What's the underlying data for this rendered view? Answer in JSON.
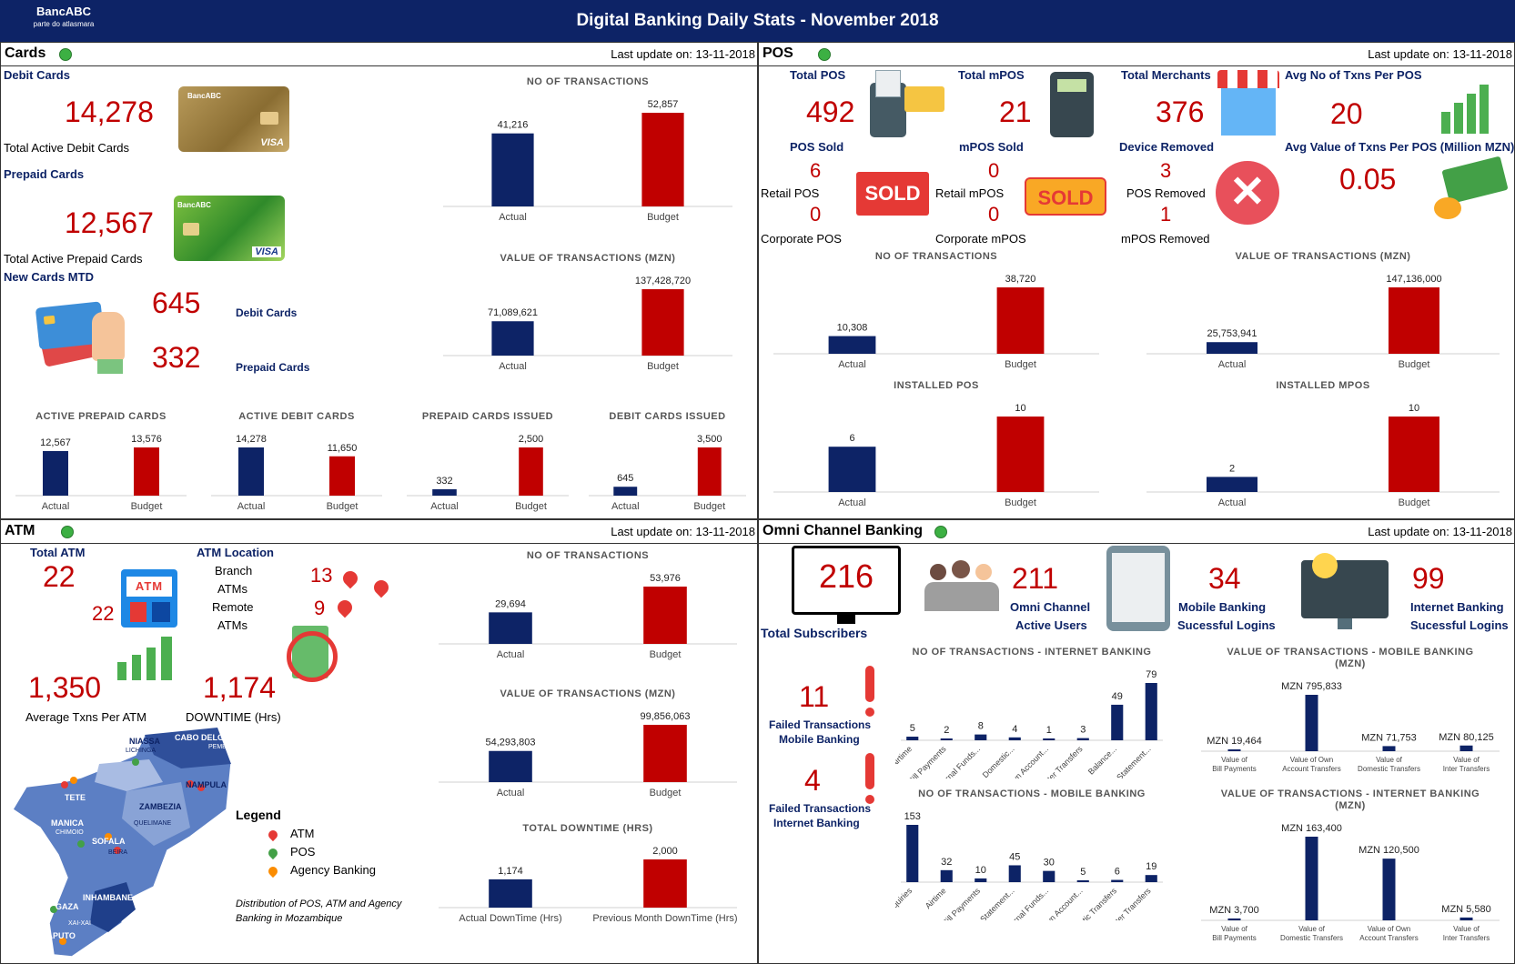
{
  "header": {
    "brand": "BancABC",
    "brand_sub": "parte do atlasmara",
    "title": "Digital Banking Daily Stats - November 2018"
  },
  "colors": {
    "navy": "#0d2366",
    "red": "#c00000",
    "status_green": "#3cb043"
  },
  "cards": {
    "title": "Cards",
    "updated": "Last update on: 13-11-2018",
    "debit_label": "Debit Cards",
    "debit_total": "14,278",
    "debit_caption": "Total Active Debit Cards",
    "prepaid_label": "Prepaid Cards",
    "prepaid_total": "12,567",
    "prepaid_caption": "Total Active Prepaid Cards",
    "new_label": "New Cards MTD",
    "new_debit": "645",
    "new_debit_label": "Debit Cards",
    "new_prepaid": "332",
    "new_prepaid_label": "Prepaid Cards",
    "card_icon_brand": "BancABC",
    "card_icon_visa": "VISA"
  },
  "pos": {
    "title": "POS",
    "updated": "Last update on: 13-11-2018",
    "total_pos_label": "Total POS",
    "total_pos": "492",
    "total_mpos_label": "Total mPOS",
    "total_mpos": "21",
    "total_merchants_label": "Total Merchants",
    "total_merchants": "376",
    "avg_txns_label": "Avg No of Txns Per POS",
    "avg_txns": "20",
    "pos_sold_label": "POS Sold",
    "pos_sold": "6",
    "mpos_sold_label": "mPOS Sold",
    "mpos_sold": "0",
    "device_removed_label": "Device Removed",
    "avg_value_label": "Avg Value of Txns Per POS (Million MZN)",
    "avg_value": "0.05",
    "retail_pos_label": "Retail POS",
    "corporate_pos": "0",
    "corporate_pos_label": "Corporate POS",
    "retail_mpos_label": "Retail mPOS",
    "corporate_mpos": "0",
    "corporate_mpos_label": "Corporate mPOS",
    "pos_removed": "3",
    "pos_removed_label": "POS Removed",
    "mpos_removed": "1",
    "mpos_removed_label": "mPOS Removed",
    "sold_text": "SOLD"
  },
  "atm": {
    "title": "ATM",
    "updated": "Last update on: 13-11-2018",
    "total_label": "Total ATM",
    "total": "22",
    "total_small": "22",
    "icon_text": "ATM",
    "location_label": "ATM Location",
    "branch_label": "Branch",
    "branch_label2": "ATMs",
    "branch": "13",
    "remote_label": "Remote",
    "remote_label2": "ATMs",
    "remote": "9",
    "avg_txns": "1,350",
    "avg_txns_label": "Average Txns Per ATM",
    "downtime": "1,174",
    "downtime_label": "DOWNTIME (Hrs)",
    "legend_title": "Legend",
    "legend": [
      "ATM",
      "POS",
      "Agency Banking"
    ],
    "legend_colors": [
      "#e53935",
      "#43a047",
      "#fb8c00"
    ],
    "map_caption": "Distribution of POS, ATM and Agency Banking in Mozambique",
    "map_labels": [
      "NIASSA",
      "CABO DELGADO",
      "PEMBA",
      "LICHINGA",
      "TETE",
      "NAMPULA",
      "ZAMBEZIA",
      "QUELIMANE",
      "MANICA",
      "CHIMOIO",
      "SOFALA",
      "BEIRA",
      "INHAMBANE",
      "GAZA",
      "MAPUTO",
      "XAI-XAI"
    ]
  },
  "omni": {
    "title": "Omni Channel Banking",
    "updated": "Last update on: 13-11-2018",
    "subscribers": "216",
    "subscribers_label": "Total Subscribers",
    "active_users": "211",
    "active_users_label1": "Omni Channel",
    "active_users_label2": "Active Users",
    "mobile_logins": "34",
    "mobile_logins_label1": "Mobile Banking",
    "mobile_logins_label2": "Sucessful Logins",
    "internet_logins": "99",
    "internet_logins_label1": "Internet Banking",
    "internet_logins_label2": "Sucessful Logins",
    "failed_mobile": "11",
    "failed_mobile_label1": "Failed Transactions",
    "failed_mobile_label2": "Mobile Banking",
    "failed_internet": "4",
    "failed_internet_label1": "Failed Transactions",
    "failed_internet_label2": "Internet Banking"
  },
  "chart_data": [
    {
      "id": "cards_txns",
      "type": "bar",
      "title": "NO OF TRANSACTIONS",
      "categories": [
        "Actual",
        "Budget"
      ],
      "values": [
        41216,
        52857
      ],
      "labels": [
        "41,216",
        "52,857"
      ]
    },
    {
      "id": "cards_value",
      "type": "bar",
      "title": "VALUE OF TRANSACTIONS (MZN)",
      "categories": [
        "Actual",
        "Budget"
      ],
      "values": [
        71089621,
        137428720
      ],
      "labels": [
        "71,089,621",
        "137,428,720"
      ]
    },
    {
      "id": "active_prepaid",
      "type": "bar",
      "title": "ACTIVE PREPAID CARDS",
      "categories": [
        "Actual",
        "Budget"
      ],
      "values": [
        12567,
        13576
      ],
      "labels": [
        "12,567",
        "13,576"
      ]
    },
    {
      "id": "active_debit",
      "type": "bar",
      "title": "ACTIVE DEBIT CARDS",
      "categories": [
        "Actual",
        "Budget"
      ],
      "values": [
        14278,
        11650
      ],
      "labels": [
        "14,278",
        "11,650"
      ]
    },
    {
      "id": "prepaid_issued",
      "type": "bar",
      "title": "PREPAID CARDS ISSUED",
      "categories": [
        "Actual",
        "Budget"
      ],
      "values": [
        332,
        2500
      ],
      "labels": [
        "332",
        "2,500"
      ]
    },
    {
      "id": "debit_issued",
      "type": "bar",
      "title": "DEBIT CARDS ISSUED",
      "categories": [
        "Actual",
        "Budget"
      ],
      "values": [
        645,
        3500
      ],
      "labels": [
        "645",
        "3,500"
      ]
    },
    {
      "id": "pos_txns",
      "type": "bar",
      "title": "NO OF TRANSACTIONS",
      "categories": [
        "Actual",
        "Budget"
      ],
      "values": [
        10308,
        38720
      ],
      "labels": [
        "10,308",
        "38,720"
      ]
    },
    {
      "id": "pos_value",
      "type": "bar",
      "title": "VALUE OF TRANSACTIONS (MZN)",
      "categories": [
        "Actual",
        "Budget"
      ],
      "values": [
        25753941,
        147136000
      ],
      "labels": [
        "25,753,941",
        "147,136,000"
      ]
    },
    {
      "id": "installed_pos",
      "type": "bar",
      "title": "INSTALLED POS",
      "categories": [
        "Actual",
        "Budget"
      ],
      "values": [
        6,
        10
      ],
      "labels": [
        "6",
        "10"
      ]
    },
    {
      "id": "installed_mpos",
      "type": "bar",
      "title": "INSTALLED MPOS",
      "categories": [
        "Actual",
        "Budget"
      ],
      "values": [
        2,
        10
      ],
      "labels": [
        "2",
        "10"
      ]
    },
    {
      "id": "atm_txns",
      "type": "bar",
      "title": "NO OF TRANSACTIONS",
      "categories": [
        "Actual",
        "Budget"
      ],
      "values": [
        29694,
        53976
      ],
      "labels": [
        "29,694",
        "53,976"
      ]
    },
    {
      "id": "atm_value",
      "type": "bar",
      "title": "VALUE OF TRANSACTIONS (MZN)",
      "categories": [
        "Actual",
        "Budget"
      ],
      "values": [
        54293803,
        99856063
      ],
      "labels": [
        "54,293,803",
        "99,856,063"
      ]
    },
    {
      "id": "atm_downtime",
      "type": "bar",
      "title": "TOTAL DOWNTIME (HRS)",
      "categories": [
        "Actual DownTime (Hrs)",
        "Previous Month DownTime (Hrs)"
      ],
      "values": [
        1174,
        2000
      ],
      "labels": [
        "1,174",
        "2,000"
      ]
    },
    {
      "id": "ib_txns",
      "type": "bar",
      "title": "NO OF TRANSACTIONS - INTERNET BANKING",
      "categories": [
        "Airtime",
        "Bill Payments",
        "Internal Funds...",
        "Domestic...",
        "Own Account...",
        "Inter Transfers",
        "Balance...",
        "Statement..."
      ],
      "values": [
        5,
        2,
        8,
        4,
        1,
        3,
        49,
        79
      ],
      "labels": [
        "5",
        "2",
        "8",
        "4",
        "1",
        "3",
        "49",
        "79"
      ]
    },
    {
      "id": "mb_value",
      "type": "bar",
      "title": "VALUE OF TRANSACTIONS - MOBILE BANKING (MZN)",
      "categories": [
        "Value of Bill Payments",
        "Value of Own Account Transfers",
        "Value of Domestic Transfers",
        "Value of Inter Transfers"
      ],
      "values": [
        19464,
        795833,
        71753,
        80125
      ],
      "labels": [
        "MZN 19,464",
        "MZN 795,833",
        "MZN 71,753",
        "MZN 80,125"
      ]
    },
    {
      "id": "mb_txns",
      "type": "bar",
      "title": "NO OF TRANSACTIONS - MOBILE BANKING",
      "categories": [
        "Balance Enquiries",
        "Airtime",
        "Bill Payments",
        "Statement...",
        "Internal Funds...",
        "Own Account...",
        "Domestic Transfers",
        "Inter Transfers"
      ],
      "values": [
        153,
        32,
        10,
        45,
        30,
        5,
        6,
        19
      ],
      "labels": [
        "153",
        "32",
        "10",
        "45",
        "30",
        "5",
        "6",
        "19"
      ]
    },
    {
      "id": "ib_value",
      "type": "bar",
      "title": "VALUE OF TRANSACTIONS - INTERNET BANKING (MZN)",
      "categories": [
        "Value of Bill Payments",
        "Value of Domestic Transfers",
        "Value of Own Account Transfers",
        "Value of Inter Transfers"
      ],
      "values": [
        3700,
        163400,
        120500,
        5580
      ],
      "labels": [
        "MZN 3,700",
        "MZN 163,400",
        "MZN 120,500",
        "MZN 5,580"
      ]
    }
  ]
}
